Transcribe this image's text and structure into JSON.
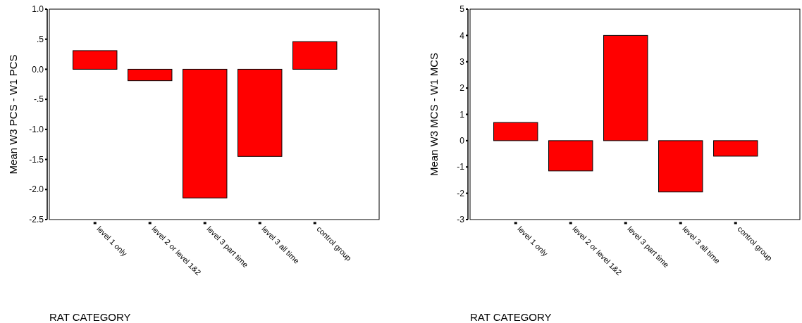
{
  "chart_data": [
    {
      "type": "bar",
      "xlabel": "RAT CATEGORY",
      "ylabel": "Mean W3 PCS - W1 PCS",
      "categories": [
        "level 1 only",
        "level 2 or level 1&2",
        "level 3 part time",
        "level 3 all time",
        "control group"
      ],
      "values": [
        0.31,
        -0.19,
        -2.14,
        -1.45,
        0.46
      ],
      "color": "#ff0000",
      "ylim": [
        -2.5,
        1.0
      ],
      "yticks": [
        {
          "value": -2.5,
          "label": "-2.5"
        },
        {
          "value": -2.0,
          "label": "-2.0"
        },
        {
          "value": -1.5,
          "label": "-1.5"
        },
        {
          "value": -1.0,
          "label": "-1.0"
        },
        {
          "value": -0.5,
          "label": "-.5"
        },
        {
          "value": 0,
          "label": "0.0"
        },
        {
          "value": 0.5,
          "label": ".5"
        },
        {
          "value": 1.0,
          "label": "1.0"
        }
      ],
      "grid": false
    },
    {
      "type": "bar",
      "xlabel": "RAT CATEGORY",
      "ylabel": "Mean W3 MCS - W1 MCS",
      "categories": [
        "level 1 only",
        "level 2 or level 1&2",
        "level 3 part time",
        "level 3 all time",
        "control group"
      ],
      "values": [
        0.69,
        -1.15,
        4.0,
        -1.95,
        -0.59
      ],
      "color": "#ff0000",
      "ylim": [
        -3,
        5
      ],
      "yticks": [
        -3,
        -2,
        -1,
        0,
        1,
        2,
        3,
        4,
        5
      ],
      "grid": false
    }
  ]
}
